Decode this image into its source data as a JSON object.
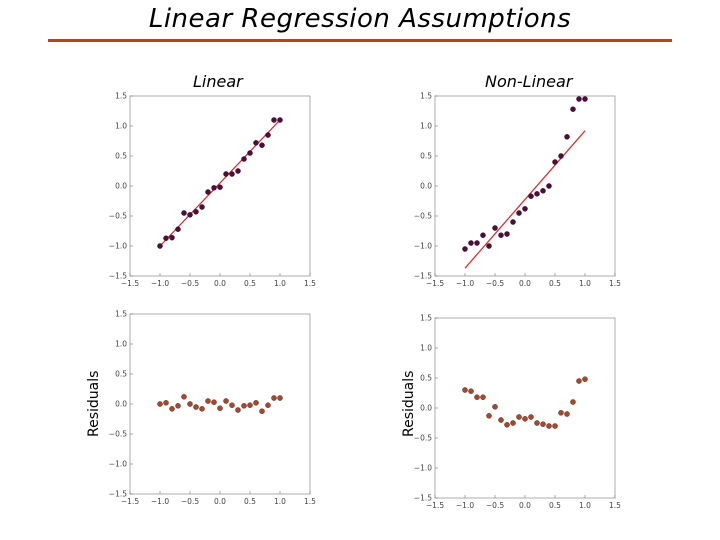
{
  "page_title": "Linear Regression Assumptions",
  "colors": {
    "rule": "#c0401c",
    "fit_line": "#d62728",
    "point_fit": "#4b0f3a",
    "point_residual": "#a34a2a"
  },
  "chart_data": [
    {
      "type": "scatter",
      "title": "Linear",
      "xlabel": "",
      "ylabel": "",
      "xlim": [
        -1.5,
        1.5
      ],
      "ylim": [
        -1.5,
        1.5
      ],
      "xticks": [
        "−1.5",
        "−1.0",
        "−0.5",
        "0.0",
        "0.5",
        "1.0",
        "1.5"
      ],
      "yticks": [
        "1.5",
        "1.0",
        "0.5",
        "0.0",
        "−0.5",
        "−1.0",
        "−1.5"
      ],
      "grid": false,
      "line": [
        [
          -1.0,
          -1.0
        ],
        [
          1.0,
          1.1
        ]
      ],
      "x": [
        -1.0,
        -0.9,
        -0.8,
        -0.7,
        -0.6,
        -0.5,
        -0.4,
        -0.3,
        -0.2,
        -0.1,
        0.0,
        0.1,
        0.2,
        0.3,
        0.4,
        0.5,
        0.6,
        0.7,
        0.8,
        0.9,
        1.0
      ],
      "y": [
        -1.0,
        -0.87,
        -0.86,
        -0.72,
        -0.45,
        -0.48,
        -0.43,
        -0.35,
        -0.1,
        -0.03,
        -0.02,
        0.2,
        0.2,
        0.25,
        0.45,
        0.55,
        0.72,
        0.68,
        0.85,
        1.1,
        1.1
      ]
    },
    {
      "type": "scatter",
      "title": "Non-Linear",
      "xlabel": "",
      "ylabel": "",
      "xlim": [
        -1.5,
        1.5
      ],
      "ylim": [
        -1.5,
        1.5
      ],
      "xticks": [
        "−1.5",
        "−1.0",
        "−0.5",
        "0.0",
        "0.5",
        "1.0",
        "1.5"
      ],
      "yticks": [
        "1.5",
        "1.0",
        "0.5",
        "0.0",
        "−0.5",
        "−1.0",
        "−1.5"
      ],
      "grid": false,
      "line": [
        [
          -1.0,
          -1.37
        ],
        [
          1.0,
          0.92
        ]
      ],
      "x": [
        -1.0,
        -0.9,
        -0.8,
        -0.7,
        -0.6,
        -0.5,
        -0.4,
        -0.3,
        -0.2,
        -0.1,
        0.0,
        0.1,
        0.2,
        0.3,
        0.4,
        0.5,
        0.6,
        0.7,
        0.8,
        0.9,
        1.0
      ],
      "y": [
        -1.05,
        -0.95,
        -0.95,
        -0.82,
        -1.0,
        -0.7,
        -0.82,
        -0.8,
        -0.6,
        -0.45,
        -0.38,
        -0.17,
        -0.13,
        -0.08,
        0.0,
        0.4,
        0.5,
        0.82,
        1.28,
        1.45,
        1.45
      ]
    },
    {
      "type": "scatter",
      "title": "",
      "xlabel": "",
      "ylabel": "Residuals",
      "xlim": [
        -1.5,
        1.5
      ],
      "ylim": [
        -1.5,
        1.5
      ],
      "xticks": [
        "−1.5",
        "−1.0",
        "−0.5",
        "0.0",
        "0.5",
        "1.0",
        "1.5"
      ],
      "yticks": [
        "1.5",
        "1.0",
        "0.5",
        "0.0",
        "−0.5",
        "−1.0",
        "−1.5"
      ],
      "grid": false,
      "x": [
        -1.0,
        -0.9,
        -0.8,
        -0.7,
        -0.6,
        -0.5,
        -0.4,
        -0.3,
        -0.2,
        -0.1,
        0.0,
        0.1,
        0.2,
        0.3,
        0.4,
        0.5,
        0.6,
        0.7,
        0.8,
        0.9,
        1.0
      ],
      "y": [
        0.0,
        0.02,
        -0.08,
        -0.03,
        0.12,
        0.0,
        -0.05,
        -0.08,
        0.05,
        0.03,
        -0.07,
        0.05,
        -0.02,
        -0.1,
        -0.03,
        -0.02,
        0.02,
        -0.12,
        -0.02,
        0.1,
        0.1
      ]
    },
    {
      "type": "scatter",
      "title": "",
      "xlabel": "",
      "ylabel": "Residuals",
      "xlim": [
        -1.5,
        1.5
      ],
      "ylim": [
        -1.5,
        1.5
      ],
      "xticks": [
        "−1.5",
        "−1.0",
        "−0.5",
        "0.0",
        "0.5",
        "1.0",
        "1.5"
      ],
      "yticks": [
        "1.5",
        "1.0",
        "0.5",
        "0.0",
        "−0.5",
        "−1.0",
        "−1.5"
      ],
      "grid": false,
      "x": [
        -1.0,
        -0.9,
        -0.8,
        -0.7,
        -0.6,
        -0.5,
        -0.4,
        -0.3,
        -0.2,
        -0.1,
        0.0,
        0.1,
        0.2,
        0.3,
        0.4,
        0.5,
        0.6,
        0.7,
        0.8,
        0.9,
        1.0
      ],
      "y": [
        0.3,
        0.28,
        0.18,
        0.18,
        -0.13,
        0.02,
        -0.2,
        -0.28,
        -0.25,
        -0.15,
        -0.18,
        -0.15,
        -0.25,
        -0.27,
        -0.3,
        -0.3,
        -0.08,
        -0.1,
        0.1,
        0.45,
        0.48
      ]
    }
  ]
}
